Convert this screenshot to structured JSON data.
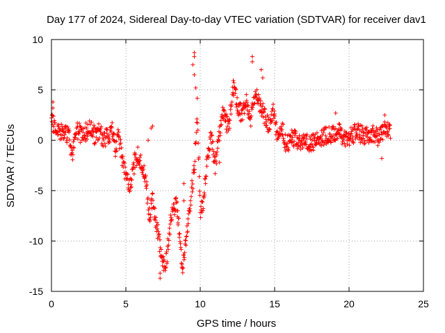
{
  "chart_data": {
    "type": "scatter",
    "title": "Day 177 of 2024, Sidereal Day-to-day VTEC variation (SDTVAR) for receiver dav1",
    "xlabel": "GPS time / hours",
    "ylabel": "SDTVAR / TECUs",
    "xlim": [
      0,
      25
    ],
    "ylim": [
      -15,
      10
    ],
    "xticks": [
      0,
      5,
      10,
      15,
      20,
      25
    ],
    "yticks": [
      -15,
      -10,
      -5,
      0,
      5,
      10
    ],
    "xtick_labels": [
      "0",
      "5",
      "10",
      "15",
      "20",
      "25"
    ],
    "ytick_labels": [
      "-15",
      "-10",
      "-5",
      "0",
      "5",
      "10"
    ],
    "grid": true,
    "marker": "+",
    "color": "#ff0000",
    "series": [
      {
        "name": "SDTVAR",
        "trend": [
          [
            0.0,
            1.8
          ],
          [
            0.3,
            1.3
          ],
          [
            0.6,
            0.8
          ],
          [
            0.9,
            1.0
          ],
          [
            1.2,
            0.2
          ],
          [
            1.4,
            -1.5
          ],
          [
            1.6,
            0.5
          ],
          [
            1.8,
            1.0
          ],
          [
            2.0,
            0.5
          ],
          [
            2.3,
            0.8
          ],
          [
            2.6,
            1.3
          ],
          [
            2.9,
            0.5
          ],
          [
            3.2,
            1.0
          ],
          [
            3.5,
            0.0
          ],
          [
            3.8,
            0.5
          ],
          [
            4.1,
            1.0
          ],
          [
            4.3,
            -1.0
          ],
          [
            4.5,
            0.5
          ],
          [
            4.8,
            -2.0
          ],
          [
            5.0,
            -3.5
          ],
          [
            5.2,
            -4.5
          ],
          [
            5.4,
            -4.0
          ],
          [
            5.6,
            -2.0
          ],
          [
            5.8,
            -1.5
          ],
          [
            6.0,
            -2.0
          ],
          [
            6.2,
            -3.0
          ],
          [
            6.4,
            -5.0
          ],
          [
            6.6,
            -7.5
          ],
          [
            6.8,
            -6.0
          ],
          [
            7.0,
            -8.0
          ],
          [
            7.2,
            -9.5
          ],
          [
            7.4,
            -11.5
          ],
          [
            7.6,
            -12.8
          ],
          [
            7.8,
            -11.0
          ],
          [
            8.0,
            -8.0
          ],
          [
            8.4,
            -6.0
          ],
          [
            8.8,
            -12.5
          ],
          [
            9.0,
            -10.5
          ],
          [
            9.3,
            -6.5
          ],
          [
            9.6,
            -3.0
          ],
          [
            9.8,
            3.5
          ],
          [
            10.0,
            -7.5
          ],
          [
            10.2,
            -6.0
          ],
          [
            10.4,
            -3.0
          ],
          [
            10.7,
            0.5
          ],
          [
            11.0,
            -2.5
          ],
          [
            11.3,
            1.0
          ],
          [
            11.6,
            3.0
          ],
          [
            11.9,
            1.0
          ],
          [
            12.2,
            5.5
          ],
          [
            12.5,
            3.5
          ],
          [
            12.8,
            2.5
          ],
          [
            13.1,
            4.0
          ],
          [
            13.4,
            2.0
          ],
          [
            13.7,
            5.0
          ],
          [
            14.0,
            3.5
          ],
          [
            14.3,
            2.5
          ],
          [
            14.6,
            1.5
          ],
          [
            14.9,
            3.0
          ],
          [
            15.2,
            0.0
          ],
          [
            15.5,
            1.0
          ],
          [
            15.8,
            -0.5
          ],
          [
            16.2,
            0.5
          ],
          [
            16.6,
            -0.5
          ],
          [
            17.0,
            0.0
          ],
          [
            17.5,
            -0.3
          ],
          [
            18.0,
            0.3
          ],
          [
            18.5,
            0.5
          ],
          [
            19.0,
            0.5
          ],
          [
            19.3,
            1.0
          ],
          [
            19.6,
            0.0
          ],
          [
            20.0,
            0.3
          ],
          [
            20.5,
            0.8
          ],
          [
            21.0,
            0.5
          ],
          [
            21.5,
            0.7
          ],
          [
            22.0,
            0.3
          ],
          [
            22.5,
            1.3
          ],
          [
            22.8,
            0.8
          ]
        ],
        "spikes": [
          [
            9.6,
            8.7
          ],
          [
            9.6,
            8.3
          ],
          [
            9.5,
            7.5
          ],
          [
            9.6,
            6.5
          ],
          [
            9.7,
            5.2
          ],
          [
            8.9,
            -4.3
          ],
          [
            8.9,
            -6.0
          ],
          [
            8.5,
            -8.2
          ],
          [
            11.3,
            -2.2
          ],
          [
            13.5,
            8.3
          ],
          [
            13.5,
            7.8
          ],
          [
            14.1,
            7.0
          ],
          [
            14.2,
            6.2
          ],
          [
            22.2,
            -1.8
          ],
          [
            22.4,
            2.5
          ],
          [
            19.1,
            2.7
          ],
          [
            0.1,
            3.8
          ],
          [
            0.1,
            3.2
          ],
          [
            6.7,
            1.2
          ],
          [
            6.8,
            1.4
          ],
          [
            6.5,
            0.0
          ],
          [
            7.3,
            -13.7
          ],
          [
            7.3,
            -13.2
          ],
          [
            7.5,
            -12.0
          ]
        ]
      }
    ]
  }
}
